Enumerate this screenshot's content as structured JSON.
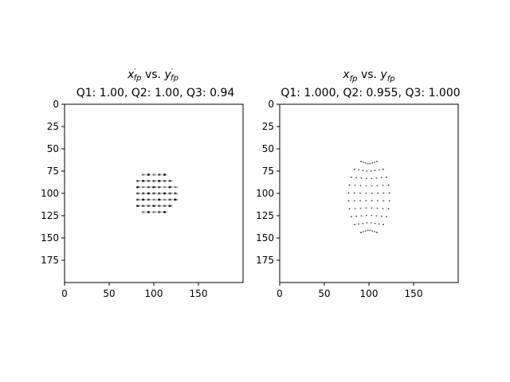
{
  "chart_data": [
    {
      "type": "heatmap",
      "title_main": "x",
      "title_main_sub": "fp",
      "title_mid": " vs. ",
      "title_main2": "y",
      "title_main2_sub": "fp",
      "primed": true,
      "subtitle": "Q1: 1.00, Q2: 1.00, Q3: 0.94",
      "xlim": [
        0,
        200
      ],
      "ylim": [
        200,
        0
      ],
      "xticks": [
        0,
        50,
        100,
        150
      ],
      "yticks": [
        0,
        25,
        50,
        75,
        100,
        125,
        150,
        175
      ],
      "xtick_labels": [
        "0",
        "50",
        "100",
        "150"
      ],
      "ytick_labels": [
        "0",
        "25",
        "50",
        "75",
        "100",
        "125",
        "150",
        "175"
      ],
      "colormap": "gray_r",
      "pattern": {
        "rows": [
          72,
          79,
          86,
          93,
          100,
          107,
          114,
          121
        ],
        "cols": [
          82,
          88,
          94,
          100,
          106,
          112,
          118,
          124
        ],
        "center": [
          100,
          100
        ],
        "radius": 27
      }
    },
    {
      "type": "heatmap",
      "title_main": "x",
      "title_main_sub": "fp",
      "title_mid": " vs. ",
      "title_main2": "y",
      "title_main2_sub": "fp",
      "primed": false,
      "subtitle": "Q1: 1.000, Q2: 0.955, Q3: 1.000",
      "xlim": [
        0,
        200
      ],
      "ylim": [
        200,
        0
      ],
      "xticks": [
        0,
        50,
        100,
        150
      ],
      "yticks": [
        0,
        25,
        50,
        75,
        100,
        125,
        150,
        175
      ],
      "xtick_labels": [
        "0",
        "50",
        "100",
        "150"
      ],
      "ytick_labels": [
        "0",
        "25",
        "50",
        "75",
        "100",
        "125",
        "150",
        "175"
      ],
      "colormap": "gray_r",
      "pattern": {
        "center": [
          100,
          104
        ],
        "half_width": 23,
        "half_height": 38,
        "rows": 10,
        "cols": 8
      }
    }
  ]
}
